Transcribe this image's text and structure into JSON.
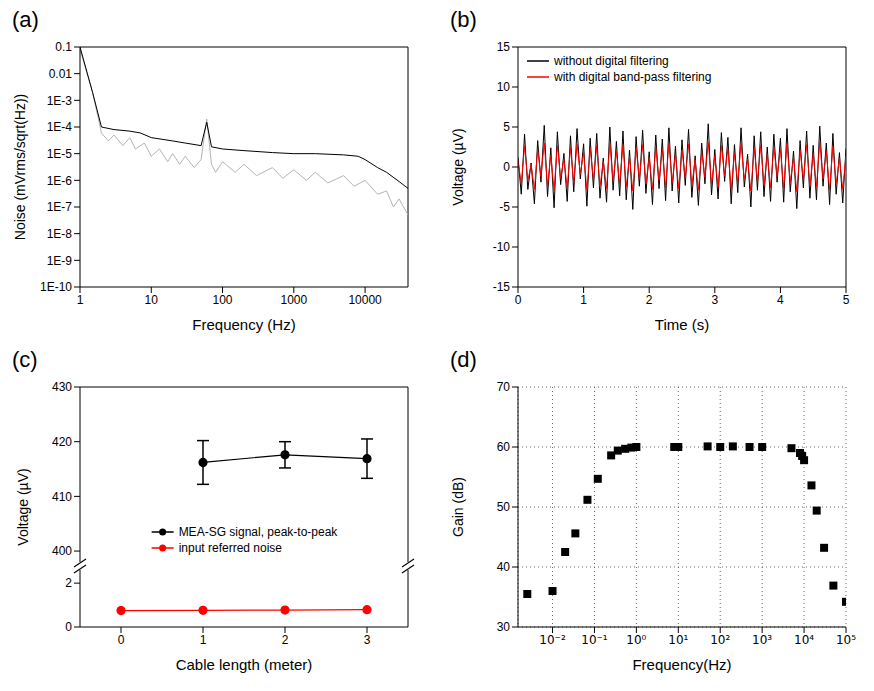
{
  "chart_data": [
    {
      "title": "(a)",
      "type": "line",
      "x_label": "Frequency (Hz)",
      "y_label": "Noise (mVrms/sqrt(Hz))",
      "log": true,
      "xlim": [
        1,
        40000
      ],
      "xticks": [
        1,
        10,
        100,
        1000,
        10000
      ],
      "ylim": [
        1e-10,
        0.1
      ],
      "yticks": [
        {
          "value": 1e-10,
          "label": "1E-10"
        },
        {
          "value": 1e-09,
          "label": "1E-9"
        },
        {
          "value": 1e-08,
          "label": "1E-8"
        },
        {
          "value": 1e-07,
          "label": "1E-7"
        },
        {
          "value": 1e-06,
          "label": "1E-6"
        },
        {
          "value": 1e-05,
          "label": "1E-5"
        },
        {
          "value": 0.0001,
          "label": "1E-4"
        },
        {
          "value": 0.001,
          "label": "1E-3"
        },
        0.01,
        0.1
      ],
      "series": [
        {
          "color": "#b4b4b4",
          "x": [
            1,
            1.5,
            2,
            2.5,
            3,
            4,
            5,
            6,
            8,
            10,
            13,
            17,
            20,
            25,
            30,
            40,
            50,
            60,
            70,
            80,
            100,
            150,
            200,
            300,
            500,
            700,
            1000,
            1500,
            2000,
            3000,
            5000,
            7000,
            10000,
            15000,
            20000,
            25000,
            30000,
            40000
          ],
          "values": [
            0.08,
            0.002,
            6e-05,
            3e-05,
            5e-05,
            2e-05,
            4e-05,
            1.5e-05,
            2.5e-05,
            8e-06,
            1.5e-05,
            5e-06,
            1e-05,
            4e-06,
            8e-06,
            3e-06,
            6e-06,
            0.0002,
            4e-06,
            2e-06,
            5e-06,
            2e-06,
            4e-06,
            1.5e-06,
            3e-06,
            1.2e-06,
            2.5e-06,
            1e-06,
            2e-06,
            8e-07,
            1.5e-06,
            6e-07,
            1e-06,
            3e-07,
            4e-07,
            1e-07,
            2e-07,
            5e-08
          ]
        },
        {
          "color": "#000000",
          "x": [
            1,
            1.5,
            2,
            3,
            5,
            7,
            10,
            20,
            30,
            50,
            60,
            70,
            100,
            200,
            500,
            1000,
            2000,
            5000,
            8000,
            10000,
            15000,
            20000,
            30000,
            40000
          ],
          "values": [
            0.1,
            0.002,
            0.0001,
            8e-05,
            7e-05,
            6e-05,
            4e-05,
            3e-05,
            2.5e-05,
            2e-05,
            0.00015,
            1.8e-05,
            1.5e-05,
            1.3e-05,
            1.1e-05,
            1e-05,
            1e-05,
            9e-06,
            8e-06,
            6e-06,
            3e-06,
            2e-06,
            9e-07,
            5e-07
          ]
        }
      ]
    },
    {
      "title": "(b)",
      "type": "line",
      "x_label": "Time (s)",
      "y_label": "Voltage (µV)",
      "legend": "upper left",
      "xlim": [
        0,
        5
      ],
      "xticks": [
        0,
        1,
        2,
        3,
        4,
        5
      ],
      "ylim": [
        -15,
        15
      ],
      "yticks": [
        -15,
        -10,
        -5,
        0,
        5,
        10,
        15
      ],
      "x": [
        0,
        0.05,
        0.1,
        0.15,
        0.2,
        0.25,
        0.3,
        0.35,
        0.4,
        0.45,
        0.5,
        0.55,
        0.6,
        0.65,
        0.7,
        0.75,
        0.8,
        0.85,
        0.9,
        0.95,
        1,
        1.05,
        1.1,
        1.15,
        1.2,
        1.25,
        1.3,
        1.35,
        1.4,
        1.45,
        1.5,
        1.55,
        1.6,
        1.65,
        1.7,
        1.75,
        1.8,
        1.85,
        1.9,
        1.95,
        2,
        2.05,
        2.1,
        2.15,
        2.2,
        2.25,
        2.3,
        2.35,
        2.4,
        2.45,
        2.5,
        2.55,
        2.6,
        2.65,
        2.7,
        2.75,
        2.8,
        2.85,
        2.9,
        2.95,
        3,
        3.05,
        3.1,
        3.15,
        3.2,
        3.25,
        3.3,
        3.35,
        3.4,
        3.45,
        3.5,
        3.55,
        3.6,
        3.65,
        3.7,
        3.75,
        3.8,
        3.85,
        3.9,
        3.95,
        4,
        4.05,
        4.1,
        4.15,
        4.2,
        4.25,
        4.3,
        4.35,
        4.4,
        4.45,
        4.5,
        4.55,
        4.6,
        4.65,
        4.7,
        4.75,
        4.8,
        4.85,
        4.9,
        4.95,
        5
      ],
      "series": [
        {
          "name": "without digital filtering",
          "color": "#000000",
          "values": [
            1.2,
            -3.4,
            4.1,
            -2.8,
            0.5,
            -4.6,
            3.3,
            -1.9,
            5.2,
            -3.7,
            2.4,
            -5.1,
            4.4,
            -2.2,
            1.7,
            -4.3,
            3.9,
            -3.1,
            4.8,
            -1.5,
            2.9,
            -4.9,
            3.6,
            -2.6,
            4.2,
            -3.9,
            1.1,
            -4.4,
            5.0,
            -2.9,
            3.2,
            -3.6,
            4.5,
            -4.1,
            2.1,
            -5.3,
            3.8,
            -2.4,
            4.6,
            -3.3,
            1.9,
            -4.7,
            4.0,
            -2.7,
            3.5,
            -4.2,
            4.9,
            -3.0,
            2.6,
            -4.5,
            3.4,
            -2.3,
            4.7,
            -3.8,
            1.4,
            -4.8,
            3.0,
            -2.1,
            5.4,
            -3.5,
            2.2,
            -4.0,
            4.3,
            -1.8,
            3.7,
            -4.6,
            2.8,
            -3.2,
            4.9,
            -2.5,
            1.6,
            -5.0,
            3.9,
            -2.9,
            4.4,
            -3.7,
            2.5,
            -4.3,
            4.1,
            -1.9,
            3.6,
            -4.4,
            4.8,
            -3.1,
            2.0,
            -5.2,
            3.3,
            -2.6,
            4.5,
            -3.9,
            2.7,
            -4.1,
            5.1,
            -2.4,
            3.0,
            -4.7,
            4.2,
            -3.4,
            1.8,
            -4.5,
            2.3
          ]
        },
        {
          "name": "with digital band-pass filtering",
          "color": "#ff0000",
          "values": [
            0.8,
            -2.1,
            2.6,
            -1.7,
            0.3,
            -2.8,
            2.2,
            -1.2,
            3.0,
            -2.4,
            1.5,
            -2.9,
            2.7,
            -1.4,
            1.0,
            -2.6,
            2.4,
            -2.0,
            2.9,
            -0.9,
            1.8,
            -2.9,
            2.3,
            -1.6,
            2.6,
            -2.4,
            0.7,
            -2.7,
            3.0,
            -1.8,
            2.0,
            -2.2,
            2.8,
            -2.5,
            1.3,
            -3.0,
            2.4,
            -1.5,
            2.8,
            -2.1,
            1.2,
            -2.8,
            2.5,
            -1.7,
            2.2,
            -2.6,
            3.0,
            -1.9,
            1.6,
            -2.7,
            2.1,
            -1.4,
            2.9,
            -2.3,
            0.9,
            -2.9,
            1.9,
            -1.3,
            3.1,
            -2.2,
            1.4,
            -2.5,
            2.7,
            -1.1,
            2.3,
            -2.8,
            1.7,
            -2.0,
            3.0,
            -1.6,
            1.0,
            -3.0,
            2.4,
            -1.8,
            2.7,
            -2.3,
            1.6,
            -2.6,
            2.5,
            -1.2,
            2.2,
            -2.7,
            2.9,
            -1.9,
            1.2,
            -3.1,
            2.1,
            -1.6,
            2.8,
            -2.4,
            1.7,
            -2.5,
            3.1,
            -1.5,
            1.9,
            -2.9,
            2.6,
            -2.1,
            1.1,
            -2.8,
            1.4
          ]
        }
      ]
    },
    {
      "title": "(c)",
      "type": "line",
      "x_label": "Cable length (meter)",
      "y_label": "Voltage (µV)",
      "legend": "lower center",
      "marker": "circle",
      "xlim": [
        -0.5,
        3.5
      ],
      "xticks": [
        0,
        1,
        2,
        3
      ],
      "ylim": [
        [
          0,
          2.6
        ],
        [
          398,
          430
        ]
      ],
      "yticks": [
        [
          0,
          2
        ],
        [
          400,
          410,
          420,
          430
        ]
      ],
      "x": [
        0,
        1,
        2,
        3
      ],
      "series": [
        {
          "name": "MEA-SG signal, peak-to-peak",
          "color": "#000000",
          "values": [
            null,
            416.2,
            417.6,
            416.9
          ],
          "errors": [
            null,
            4.0,
            2.4,
            3.6
          ]
        },
        {
          "name": "input referred noise",
          "color": "#ff0000",
          "values": [
            0.75,
            0.76,
            0.77,
            0.79
          ]
        }
      ]
    },
    {
      "title": "(d)",
      "type": "scatter",
      "x_label": "Frequency(Hz)",
      "y_label": "Gain (dB)",
      "log": "x",
      "grid": true,
      "marker": "square",
      "color": "#000000",
      "xlim": [
        0.0015,
        100000
      ],
      "xticks": [
        {
          "value": 0.01,
          "label": "10⁻²"
        },
        {
          "value": 0.1,
          "label": "10⁻¹"
        },
        {
          "value": 1,
          "label": "10⁰"
        },
        {
          "value": 10,
          "label": "10¹"
        },
        {
          "value": 100,
          "label": "10²"
        },
        {
          "value": 1000,
          "label": "10³"
        },
        {
          "value": 10000,
          "label": "10⁴"
        },
        {
          "value": 100000,
          "label": "10⁵"
        }
      ],
      "ylim": [
        30,
        70
      ],
      "yticks": [
        30,
        40,
        50,
        60,
        70
      ],
      "x": [
        0.0025,
        0.01,
        0.02,
        0.035,
        0.068,
        0.12,
        0.25,
        0.36,
        0.54,
        0.76,
        1,
        8,
        9,
        10,
        50,
        100,
        200,
        500,
        1000,
        5000,
        8000,
        9000,
        10000,
        15000,
        20000,
        30000,
        50000,
        100000
      ],
      "values": [
        35.5,
        36,
        42.5,
        45.6,
        51.2,
        54.7,
        58.6,
        59.4,
        59.7,
        59.9,
        60,
        60,
        60,
        60,
        60.1,
        60,
        60.1,
        60,
        60,
        59.8,
        59,
        58.5,
        57.8,
        53.6,
        49.4,
        43.2,
        36.9,
        34.2
      ]
    }
  ]
}
